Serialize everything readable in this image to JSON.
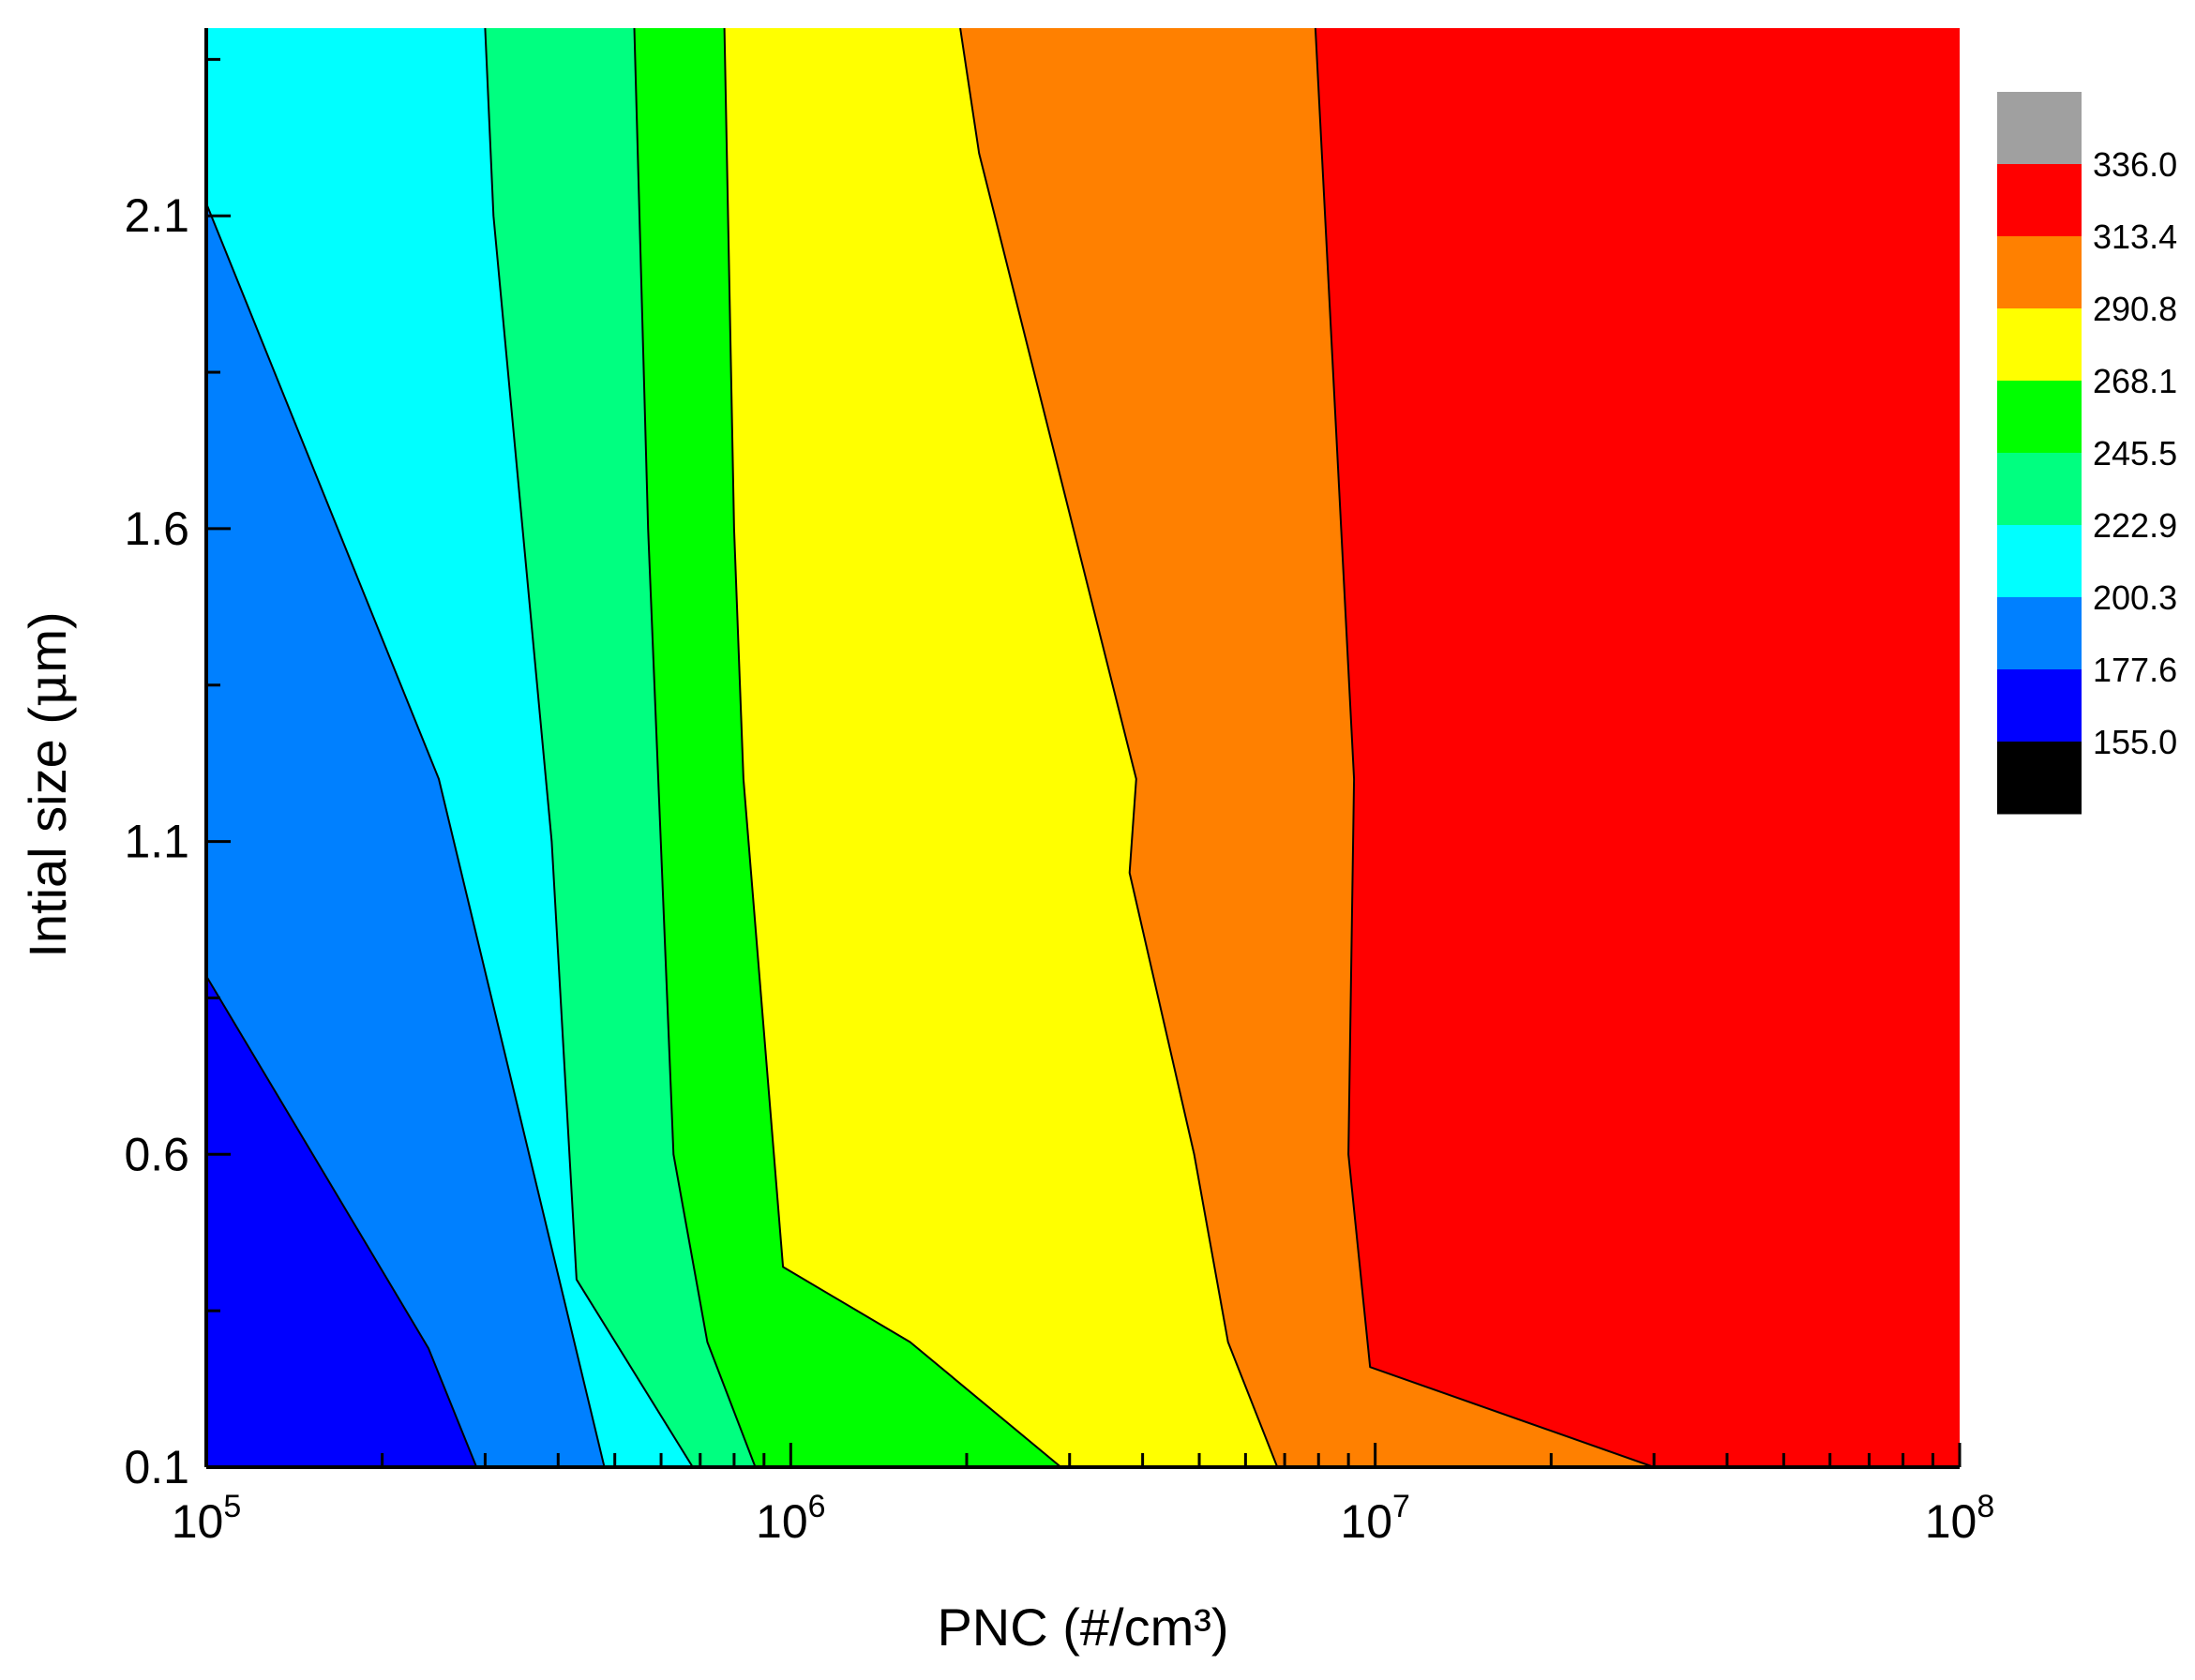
{
  "chart_data": {
    "type": "contour",
    "title": "",
    "xlabel": "PNC (#/cm³)",
    "ylabel_main": "Intial size (",
    "ylabel_mu": "μ",
    "ylabel_tail": "m)",
    "x_scale": "log",
    "xlim": [
      100000,
      100000000
    ],
    "ylim": [
      0.1,
      2.4
    ],
    "x_ticks": [
      {
        "value": 100000,
        "base": "10",
        "exp": "5"
      },
      {
        "value": 1000000,
        "base": "10",
        "exp": "6"
      },
      {
        "value": 10000000,
        "base": "10",
        "exp": "7"
      },
      {
        "value": 100000000,
        "base": "10",
        "exp": "8"
      }
    ],
    "y_ticks": [
      {
        "value": 0.1,
        "label": "0.1"
      },
      {
        "value": 0.6,
        "label": "0.6"
      },
      {
        "value": 1.1,
        "label": "1.1"
      },
      {
        "value": 1.6,
        "label": "1.6"
      },
      {
        "value": 2.1,
        "label": "2.1"
      }
    ],
    "grid": false,
    "legend_placement": "right",
    "levels": [
      155.0,
      177.6,
      200.3,
      222.9,
      245.5,
      268.1,
      290.8,
      313.4,
      336.0
    ],
    "level_labels": [
      "155.0",
      "177.6",
      "200.3",
      "222.9",
      "245.5",
      "268.1",
      "290.8",
      "313.4",
      "336.0"
    ],
    "band_colors": [
      "#000000",
      "#0000ff",
      "#0080ff",
      "#00ffff",
      "#00ff80",
      "#00ff00",
      "#ffff00",
      "#ff8000",
      "#ff0000",
      "#a0a0a0"
    ],
    "contours": [
      {
        "level": 177.6,
        "points": [
          [
            100000,
            0.885
          ],
          [
            240000,
            0.29
          ],
          [
            290000,
            0.1
          ]
        ]
      },
      {
        "level": 200.3,
        "points": [
          [
            100000,
            2.12
          ],
          [
            250000,
            1.2
          ],
          [
            480000,
            0.1
          ]
        ]
      },
      {
        "level": 222.9,
        "points": [
          [
            300000,
            2.4
          ],
          [
            310000,
            2.1
          ],
          [
            390000,
            1.1
          ],
          [
            430000,
            0.4
          ],
          [
            680000,
            0.1
          ]
        ]
      },
      {
        "level": 245.5,
        "points": [
          [
            540000,
            2.4
          ],
          [
            570000,
            1.6
          ],
          [
            630000,
            0.6
          ],
          [
            720000,
            0.3
          ],
          [
            870000,
            0.1
          ]
        ]
      },
      {
        "level": 268.1,
        "points": [
          [
            770000,
            2.4
          ],
          [
            800000,
            1.6
          ],
          [
            830000,
            1.2
          ],
          [
            970000,
            0.42
          ],
          [
            1600000,
            0.3
          ],
          [
            2900000,
            0.1
          ]
        ]
      },
      {
        "level": 290.8,
        "points": [
          [
            1950000,
            2.4
          ],
          [
            2100000,
            2.2
          ],
          [
            3900000,
            1.2
          ],
          [
            3800000,
            1.05
          ],
          [
            4900000,
            0.6
          ],
          [
            5600000,
            0.3
          ],
          [
            6800000,
            0.1
          ]
        ]
      },
      {
        "level": 313.4,
        "points": [
          [
            7900000,
            2.4
          ],
          [
            9200000,
            1.2
          ],
          [
            9000000,
            0.6
          ],
          [
            9800000,
            0.26
          ],
          [
            30000000,
            0.1
          ]
        ]
      }
    ]
  }
}
